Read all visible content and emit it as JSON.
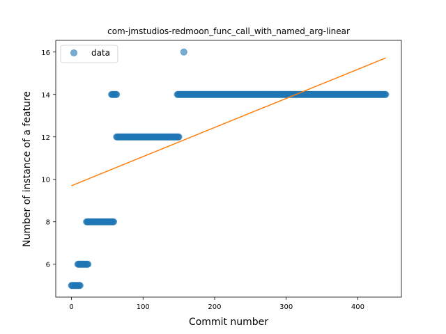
{
  "chart_data": {
    "type": "scatter",
    "title": "com-jmstudios-redmoon_func_call_with_named_arg-linear",
    "xlabel": "Commit number",
    "ylabel": "Number of instance of a feature",
    "xlim": [
      -21.95,
      460.95
    ],
    "ylim": [
      4.45,
      16.55
    ],
    "xticks": [
      0,
      100,
      200,
      300,
      400
    ],
    "yticks": [
      6,
      8,
      10,
      12,
      14,
      16
    ],
    "grid": false,
    "legend": {
      "position": "upper-left",
      "entries": [
        "data"
      ]
    },
    "colors": {
      "data": "#1f77b4",
      "fit": "#ff7f0e"
    },
    "series": [
      {
        "name": "data",
        "kind": "scatter",
        "runs": [
          {
            "x_start": 0,
            "x_end": 12,
            "y": 5
          },
          {
            "x_start": 9,
            "x_end": 23,
            "y": 6
          },
          {
            "x_start": 21,
            "x_end": 59,
            "y": 8
          },
          {
            "x_start": 56,
            "x_end": 63,
            "y": 14
          },
          {
            "x_start": 63,
            "x_end": 150,
            "y": 12
          },
          {
            "x_start": 148,
            "x_end": 439,
            "y": 14
          }
        ],
        "points": [
          {
            "x": 157,
            "y": 16
          }
        ]
      },
      {
        "name": "linear-fit",
        "kind": "line",
        "x": [
          0,
          439
        ],
        "y": [
          9.7,
          15.72
        ]
      }
    ]
  }
}
